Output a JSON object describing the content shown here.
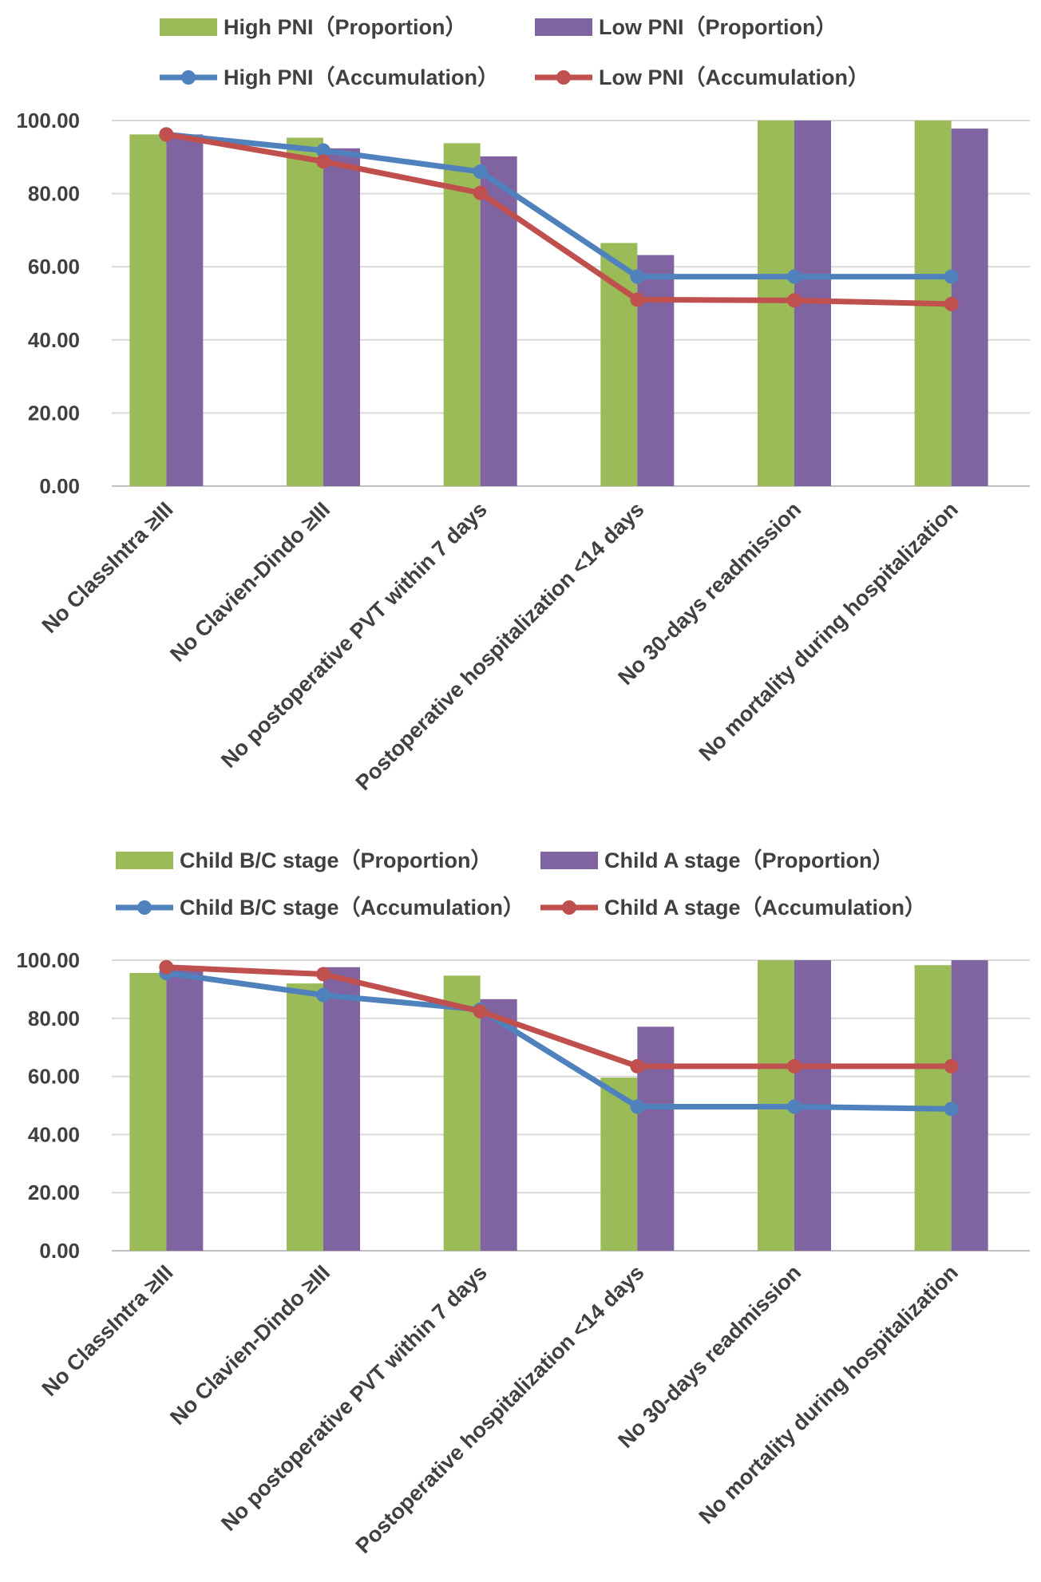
{
  "chart_data": [
    {
      "type": "bar",
      "categories": [
        "No ClassIntra ≥III",
        "No Clavien-Dindo ≥III",
        "No postoperative PVT within 7 days",
        "Postoperative hospitalization <14 days",
        "No 30-days readmission",
        "No mortality during hospitalization"
      ],
      "ylim": [
        0,
        100
      ],
      "yticks": [
        "0.00",
        "20.00",
        "40.00",
        "60.00",
        "80.00",
        "100.00"
      ],
      "grid": true,
      "legend_position": "top",
      "series": [
        {
          "name": "High PNI（Proportion）",
          "kind": "bar",
          "color": "#9bbb59",
          "values": [
            96.2,
            95.3,
            93.8,
            66.5,
            100.0,
            100.0
          ]
        },
        {
          "name": "Low PNI（Proportion）",
          "kind": "bar",
          "color": "#8064a2",
          "values": [
            96.2,
            92.4,
            90.2,
            63.2,
            100.0,
            97.8
          ]
        },
        {
          "name": "High PNI（Accumulation）",
          "kind": "line",
          "color": "#4f81bd",
          "values": [
            96.2,
            91.8,
            86.0,
            57.3,
            57.3,
            57.3
          ]
        },
        {
          "name": "Low PNI（Accumulation）",
          "kind": "line",
          "color": "#c0504d",
          "values": [
            96.2,
            88.8,
            80.2,
            51.0,
            50.8,
            49.8
          ]
        }
      ]
    },
    {
      "type": "bar",
      "categories": [
        "No ClassIntra ≥III",
        "No Clavien-Dindo ≥III",
        "No postoperative PVT within 7 days",
        "Postoperative hospitalization <14 days",
        "No 30-days readmission",
        "No mortality during hospitalization"
      ],
      "ylim": [
        0,
        100
      ],
      "yticks": [
        "0.00",
        "20.00",
        "40.00",
        "60.00",
        "80.00",
        "100.00"
      ],
      "grid": true,
      "legend_position": "top",
      "series": [
        {
          "name": "Child B/C stage（Proportion）",
          "kind": "bar",
          "color": "#9bbb59",
          "values": [
            95.6,
            92.0,
            94.7,
            59.6,
            100.0,
            98.3
          ]
        },
        {
          "name": "Child A stage（Proportion）",
          "kind": "bar",
          "color": "#8064a2",
          "values": [
            97.6,
            97.6,
            86.6,
            77.1,
            100.0,
            100.0
          ]
        },
        {
          "name": "Child B/C stage（Accumulation）",
          "kind": "line",
          "color": "#4f81bd",
          "values": [
            95.6,
            88.0,
            83.0,
            49.6,
            49.6,
            48.8
          ]
        },
        {
          "name": "Child A stage（Accumulation）",
          "kind": "line",
          "color": "#c0504d",
          "values": [
            97.6,
            95.2,
            82.4,
            63.5,
            63.5,
            63.5
          ]
        }
      ]
    }
  ]
}
